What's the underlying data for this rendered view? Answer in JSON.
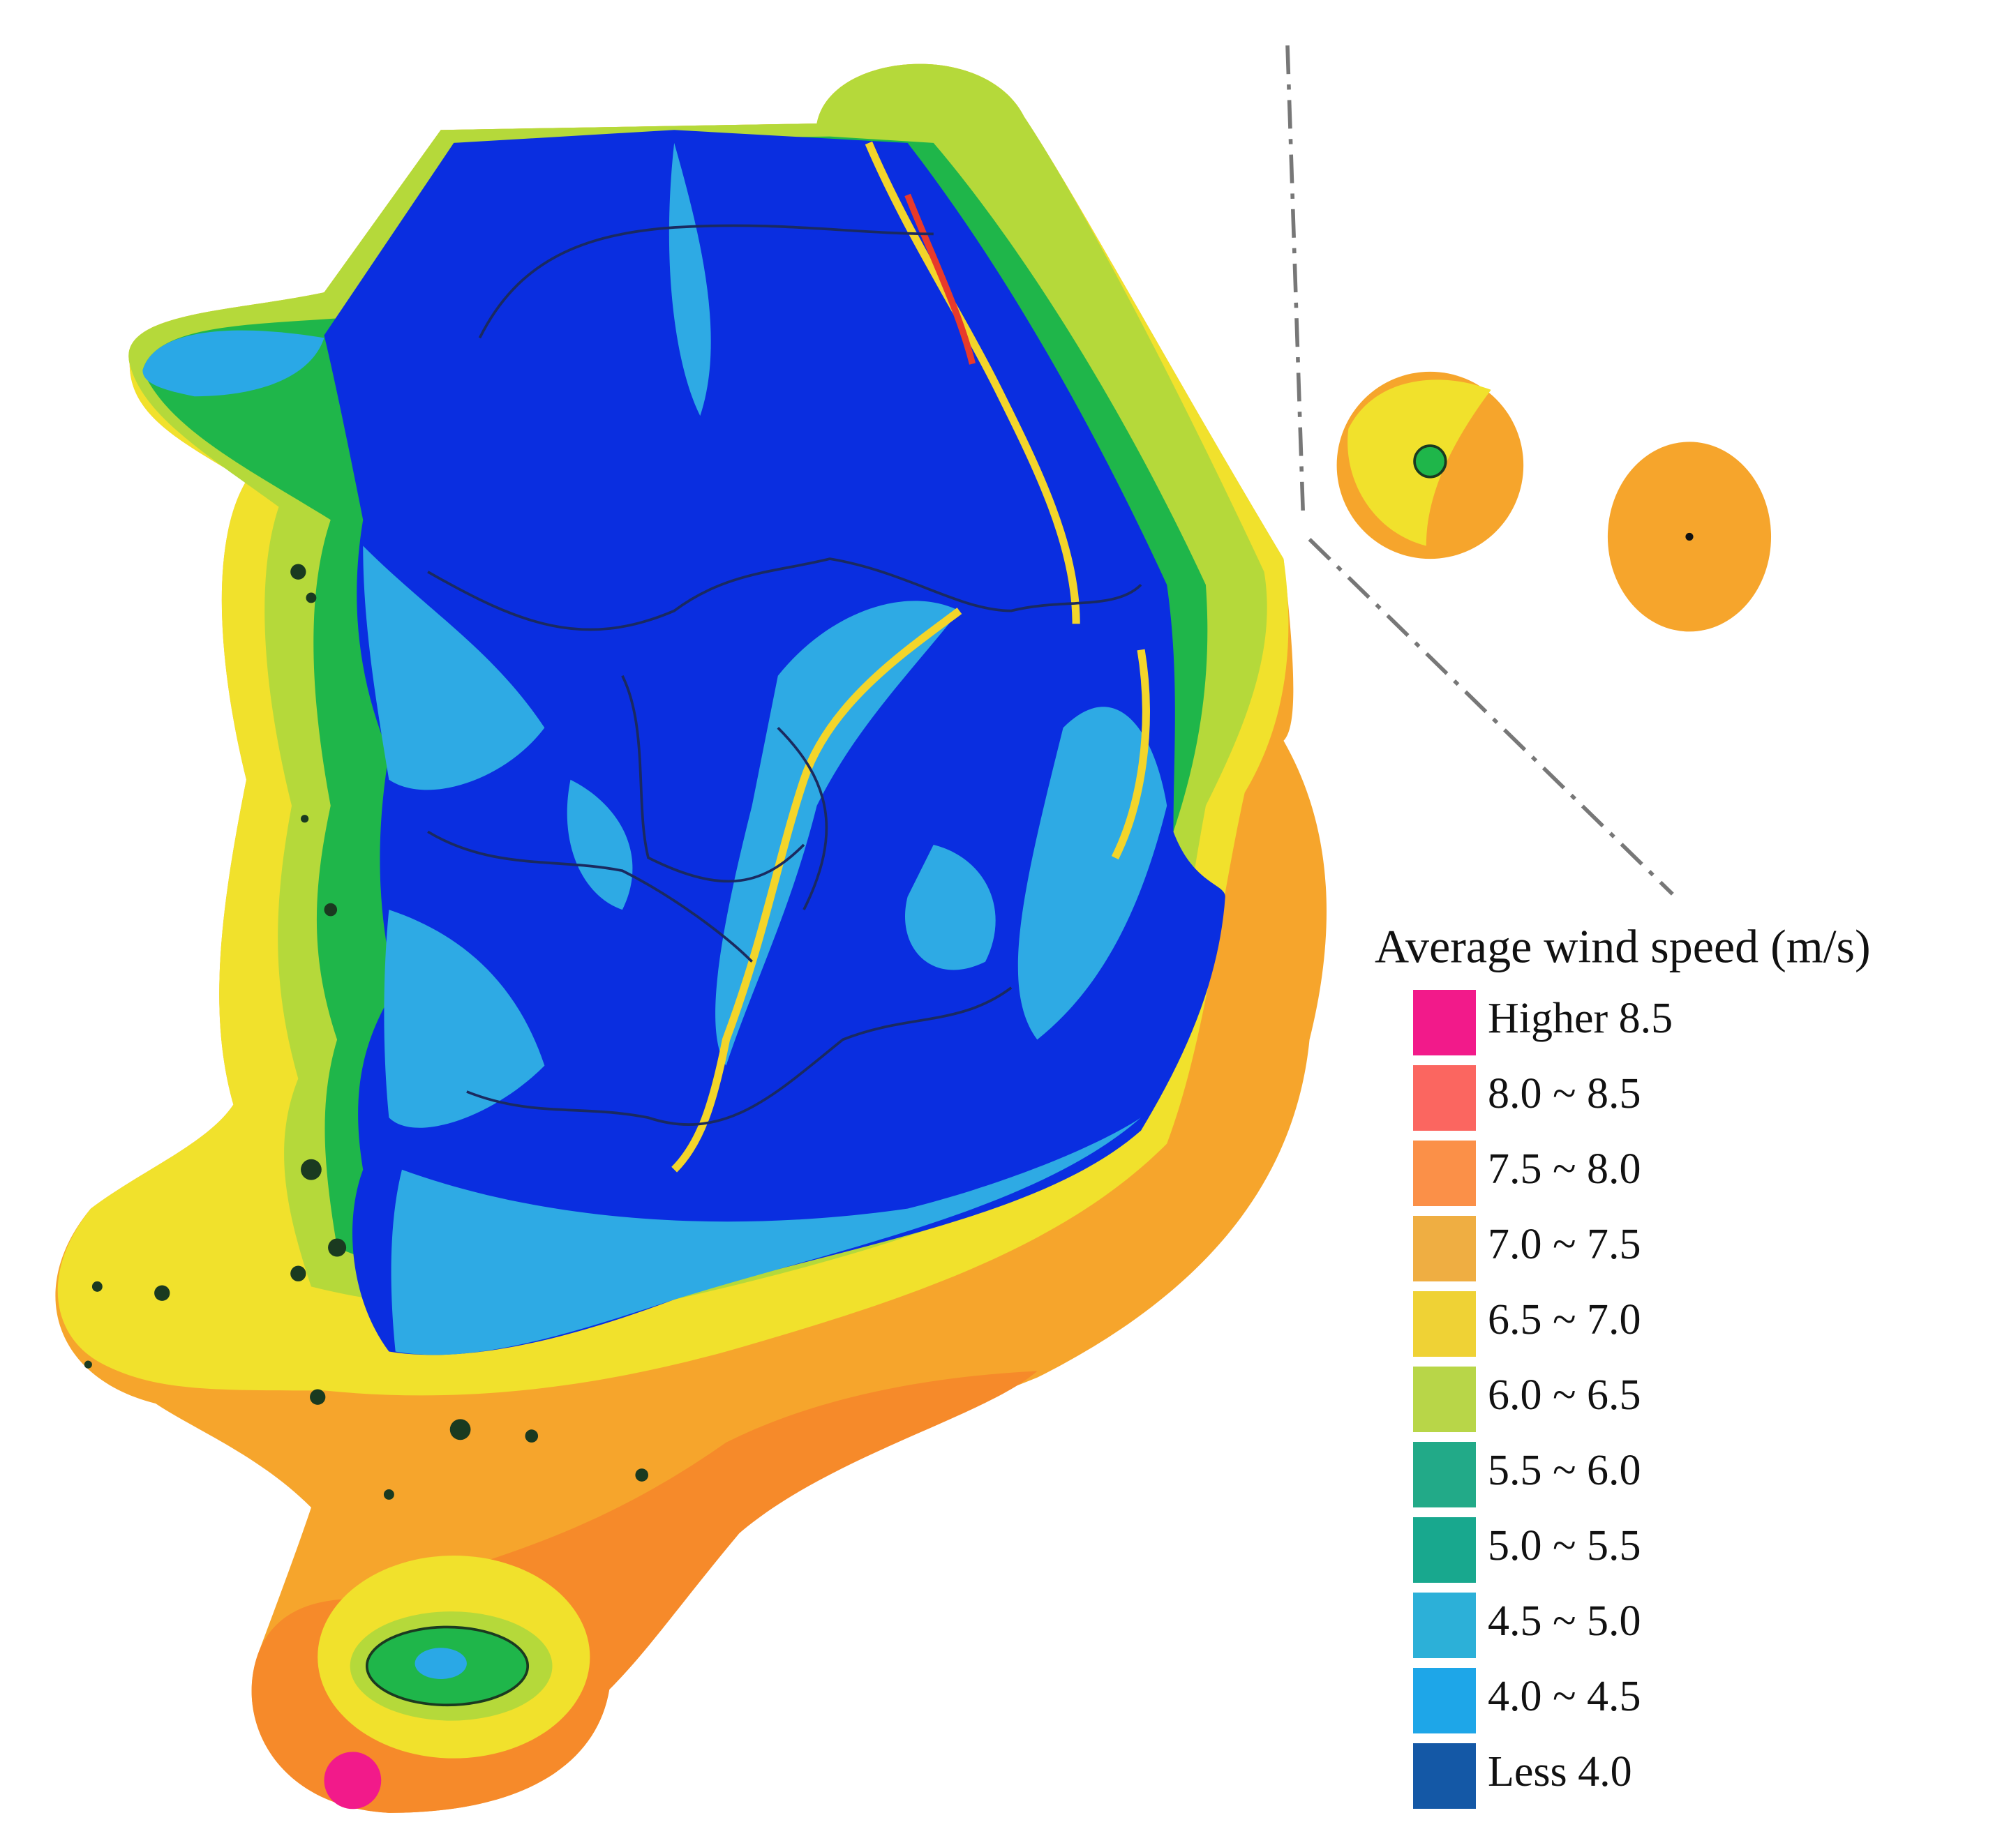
{
  "legend": {
    "title": "Average wind speed (m/s)",
    "items": [
      {
        "label": "Higher 8.5",
        "color": "#f21a8a"
      },
      {
        "label": "8.0 ~ 8.5",
        "color": "#fb6660"
      },
      {
        "label": "7.5 ~ 8.0",
        "color": "#fb9048"
      },
      {
        "label": "7.0 ~ 7.5",
        "color": "#efae42"
      },
      {
        "label": "6.5 ~ 7.0",
        "color": "#efd235"
      },
      {
        "label": "6.0 ~ 6.5",
        "color": "#b8d648"
      },
      {
        "label": "5.5 ~ 6.0",
        "color": "#22aa88"
      },
      {
        "label": "5.0 ~ 5.5",
        "color": "#18a88e"
      },
      {
        "label": "4.5 ~ 5.0",
        "color": "#2cb0d8"
      },
      {
        "label": "4.0 ~ 4.5",
        "color": "#1ea6e8"
      },
      {
        "label": "Less 4.0",
        "color": "#1458a6"
      }
    ]
  }
}
